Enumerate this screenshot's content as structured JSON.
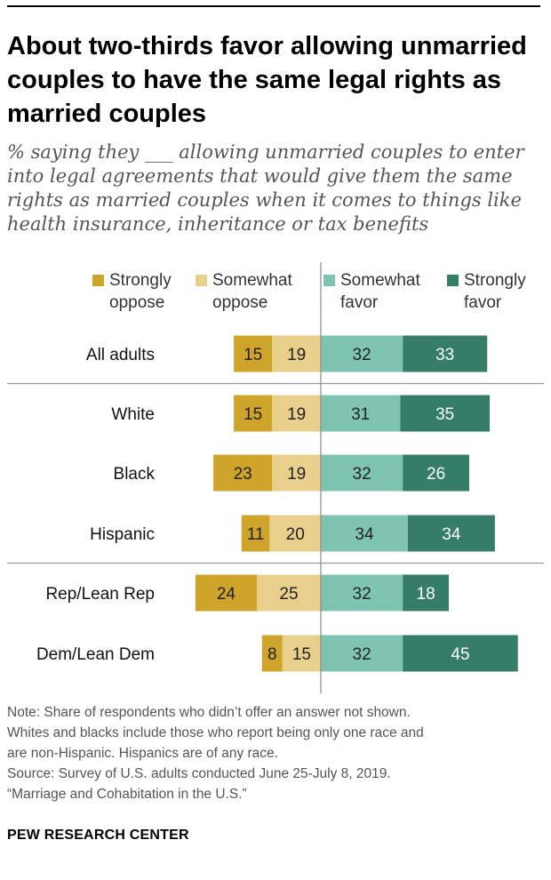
{
  "title": "About two-thirds favor allowing unmarried couples to have the same legal rights as married couples",
  "subtitle": "% saying they ___ allowing unmarried couples to enter into legal agreements that would give them the same rights as married couples when it comes to things like health insurance, inheritance or tax benefits",
  "legend": [
    {
      "label": "Strongly oppose",
      "color": "#CFA42B"
    },
    {
      "label": "Somewhat oppose",
      "color": "#E8D08C"
    },
    {
      "label": "Somewhat favor",
      "color": "#7FC4B3"
    },
    {
      "label": "Strongly favor",
      "color": "#357C69"
    }
  ],
  "chart_data": {
    "type": "bar",
    "orientation": "horizontal",
    "stacked": "diverging",
    "categories": [
      "All adults",
      "White",
      "Black",
      "Hispanic",
      "Rep/Lean Rep",
      "Dem/Lean Dem"
    ],
    "series": [
      {
        "name": "Strongly oppose",
        "color": "#CFA42B",
        "values": [
          15,
          15,
          23,
          11,
          24,
          8
        ]
      },
      {
        "name": "Somewhat oppose",
        "color": "#E8D08C",
        "values": [
          19,
          19,
          19,
          20,
          25,
          15
        ]
      },
      {
        "name": "Somewhat favor",
        "color": "#7FC4B3",
        "values": [
          32,
          31,
          32,
          34,
          32,
          32
        ]
      },
      {
        "name": "Strongly favor",
        "color": "#357C69",
        "values": [
          33,
          35,
          26,
          34,
          18,
          45
        ]
      }
    ],
    "group_dividers_after": [
      "All adults",
      "Hispanic"
    ]
  },
  "note": [
    "Note: Share of respondents who didn’t offer an answer not shown.",
    "Whites and blacks include those who report being only one race and",
    "are non-Hispanic. Hispanics are of any race.",
    "Source: Survey of U.S. adults conducted June 25-July 8, 2019.",
    "“Marriage and Cohabitation in the U.S.”"
  ],
  "brand": "PEW RESEARCH CENTER"
}
